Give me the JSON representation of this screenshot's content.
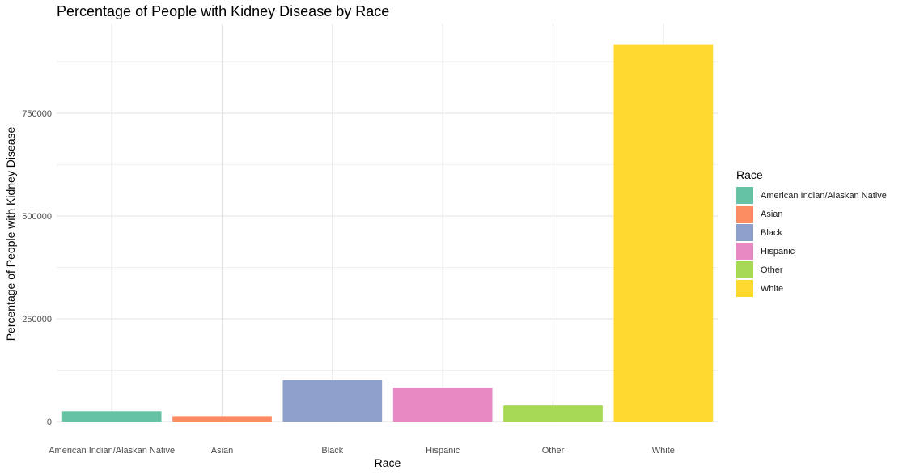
{
  "chart_data": {
    "type": "bar",
    "title": "Percentage of People with Kidney Disease by Race",
    "xlabel": "Race",
    "ylabel": "Percentage of People with Kidney Disease",
    "categories": [
      "American Indian/Alaskan Native",
      "Asian",
      "Black",
      "Hispanic",
      "Other",
      "White"
    ],
    "values": [
      25000,
      13000,
      101000,
      82000,
      39000,
      918000
    ],
    "colors": [
      "#66C2A5",
      "#FC8D62",
      "#8DA0CB",
      "#E78AC3",
      "#A6D854",
      "#FFD92F"
    ],
    "yticks": [
      0,
      250000,
      500000,
      750000
    ],
    "ytick_labels": [
      "0",
      "250000",
      "500000",
      "750000"
    ],
    "ylim": [
      0,
      962000
    ],
    "grid": true,
    "legend": {
      "title": "Race",
      "placement": "right",
      "entries": [
        "American Indian/Alaskan Native",
        "Asian",
        "Black",
        "Hispanic",
        "Other",
        "White"
      ]
    }
  }
}
